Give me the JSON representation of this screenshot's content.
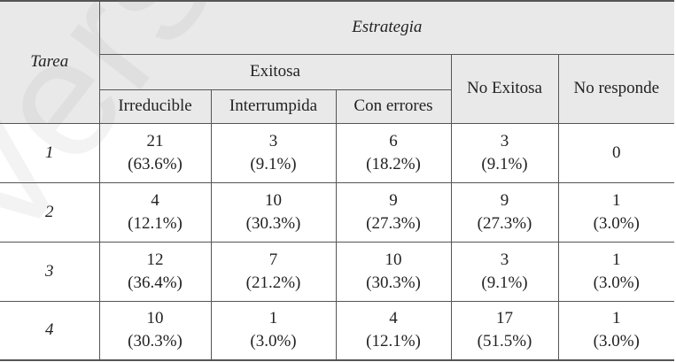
{
  "watermark": "Versión",
  "header": {
    "tarea": "Tarea",
    "estrategia": "Estrategia",
    "exitosa": "Exitosa",
    "no_exitosa": "No Exitosa",
    "no_responde": "No responde",
    "irreducible": "Irreducible",
    "interrumpida": "Interrumpida",
    "con_errores": "Con errores"
  },
  "rows": [
    {
      "tarea": "1",
      "cells": [
        {
          "count": "21",
          "pct": "(63.6%)"
        },
        {
          "count": "3",
          "pct": "(9.1%)"
        },
        {
          "count": "6",
          "pct": "(18.2%)"
        },
        {
          "count": "3",
          "pct": "(9.1%)"
        },
        {
          "count": "0",
          "pct": ""
        }
      ]
    },
    {
      "tarea": "2",
      "cells": [
        {
          "count": "4",
          "pct": "(12.1%)"
        },
        {
          "count": "10",
          "pct": "(30.3%)"
        },
        {
          "count": "9",
          "pct": "(27.3%)"
        },
        {
          "count": "9",
          "pct": "(27.3%)"
        },
        {
          "count": "1",
          "pct": "(3.0%)"
        }
      ]
    },
    {
      "tarea": "3",
      "cells": [
        {
          "count": "12",
          "pct": "(36.4%)"
        },
        {
          "count": "7",
          "pct": "(21.2%)"
        },
        {
          "count": "10",
          "pct": "(30.3%)"
        },
        {
          "count": "3",
          "pct": "(9.1%)"
        },
        {
          "count": "1",
          "pct": "(3.0%)"
        }
      ]
    },
    {
      "tarea": "4",
      "cells": [
        {
          "count": "10",
          "pct": "(30.3%)"
        },
        {
          "count": "1",
          "pct": "(3.0%)"
        },
        {
          "count": "4",
          "pct": "(12.1%)"
        },
        {
          "count": "17",
          "pct": "(51.5%)"
        },
        {
          "count": "1",
          "pct": "(3.0%)"
        }
      ]
    }
  ]
}
